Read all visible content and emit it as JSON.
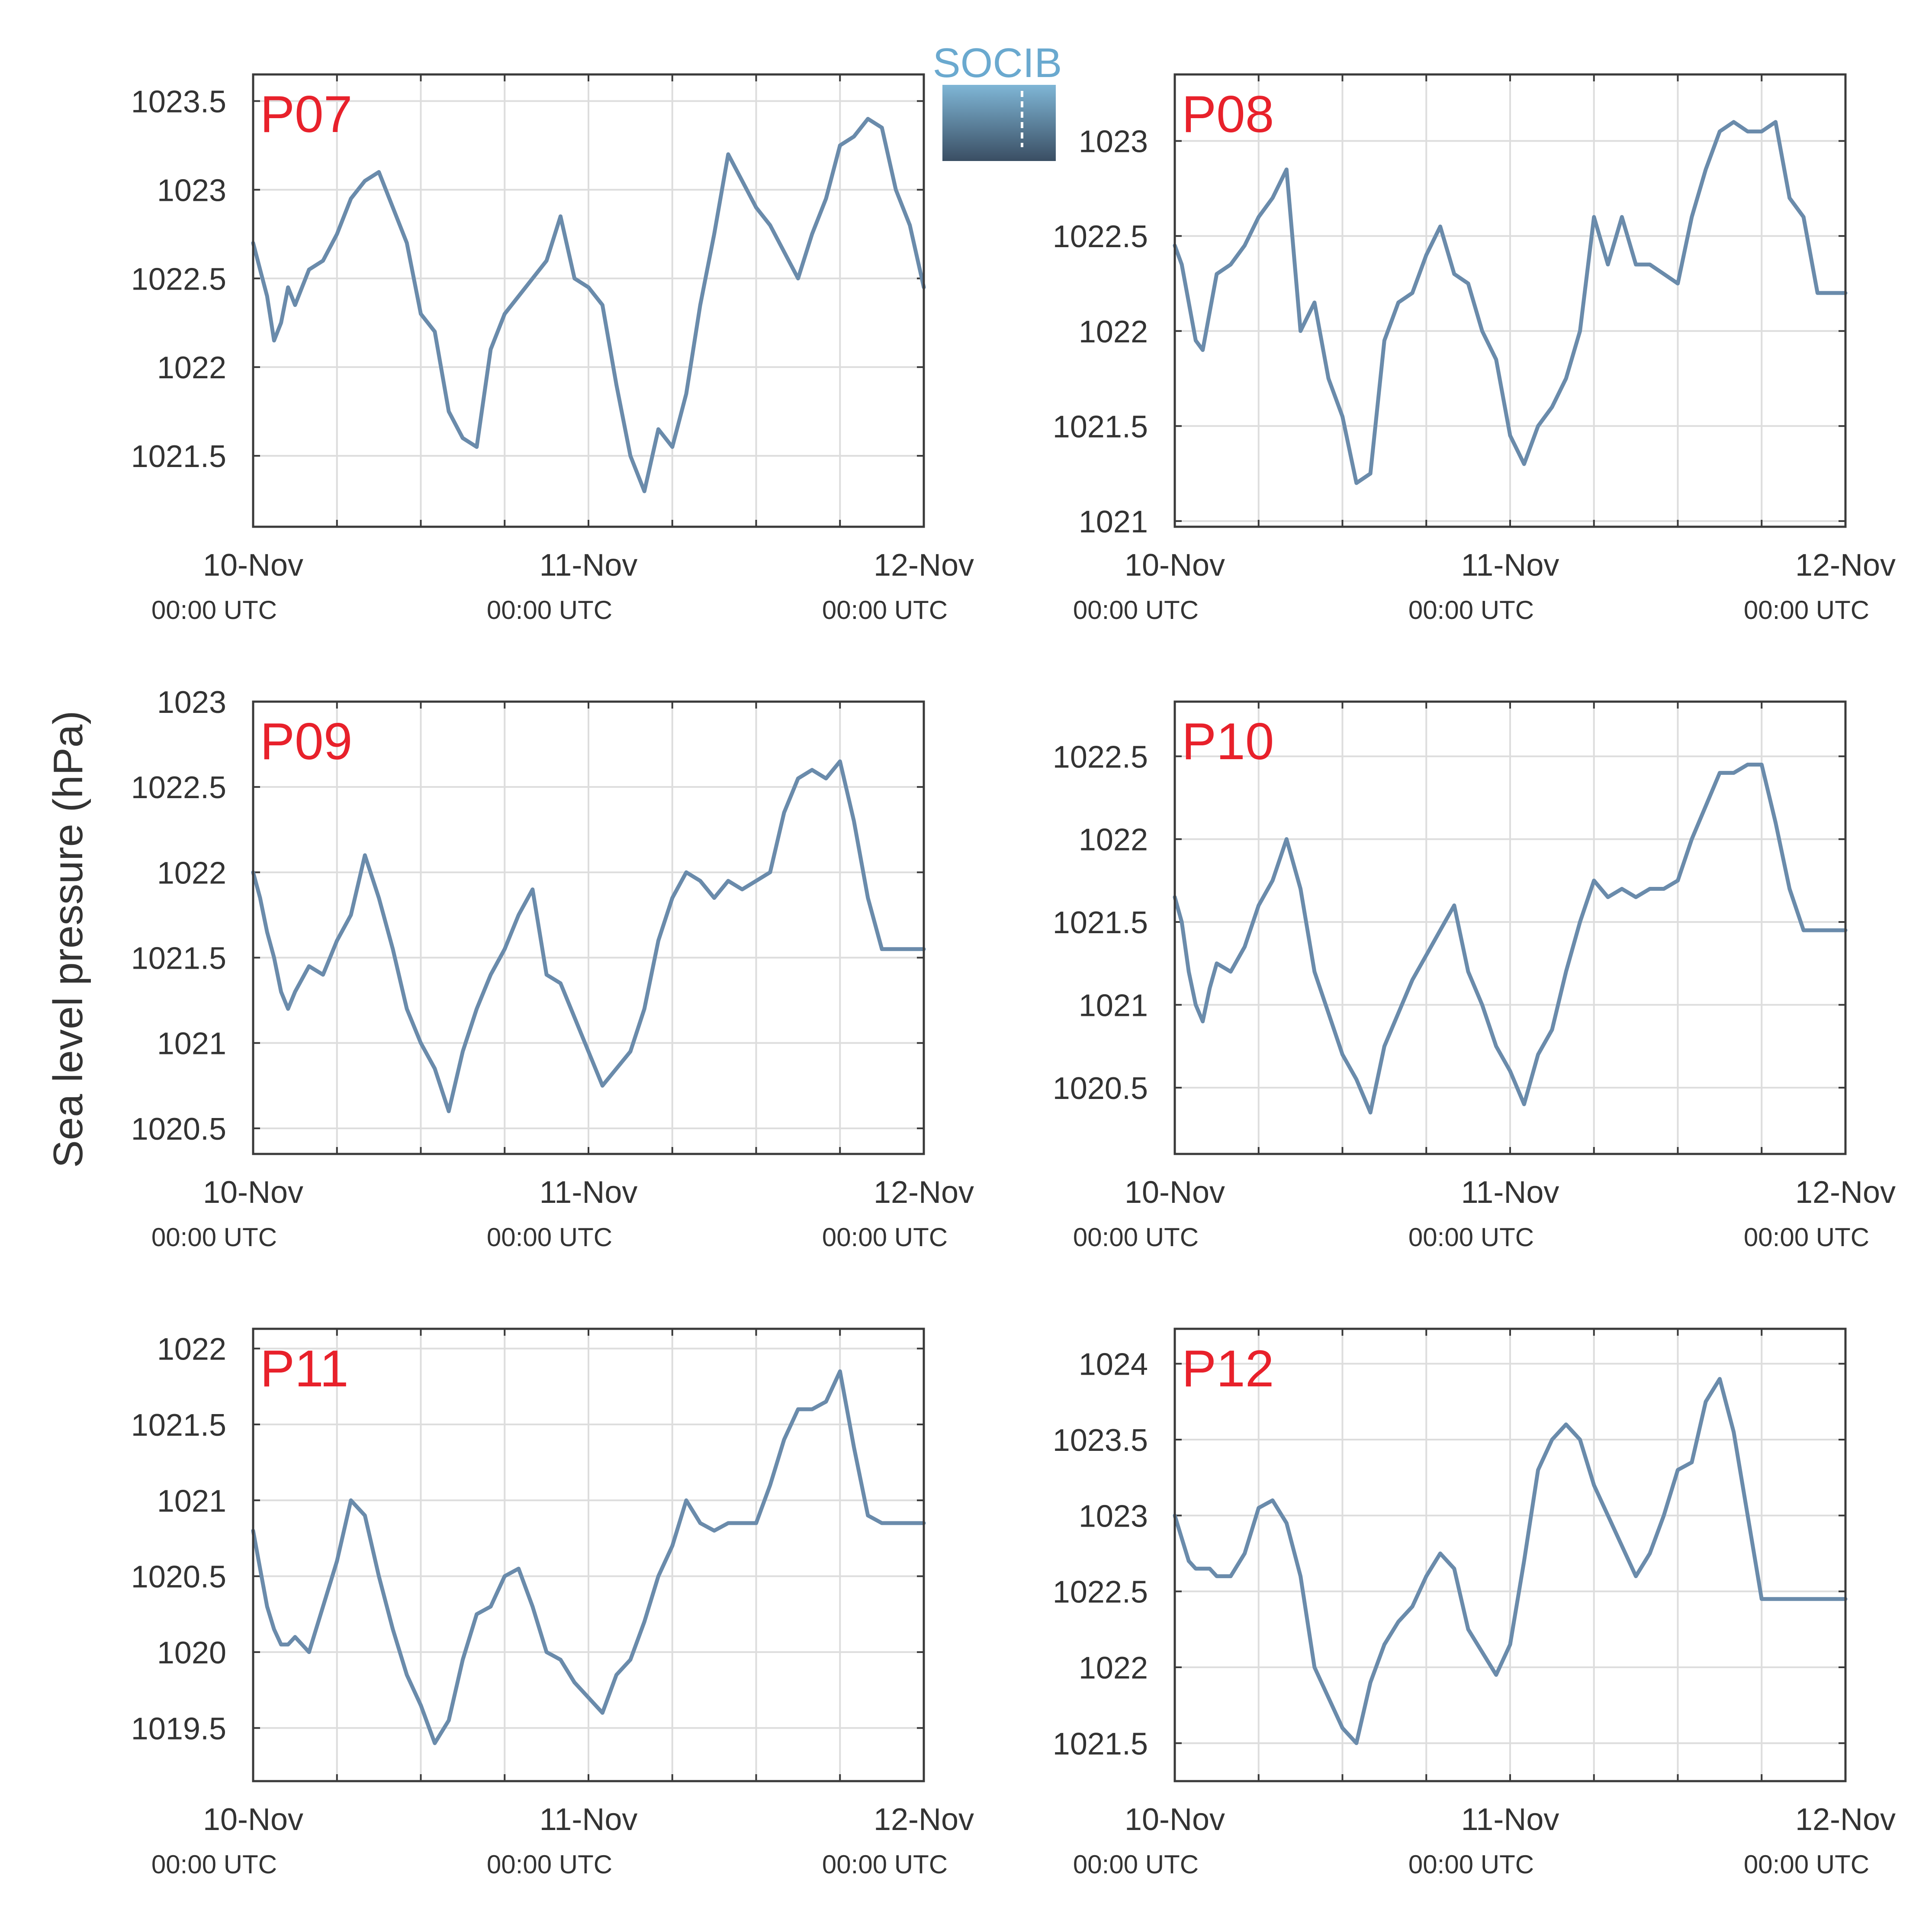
{
  "figure": {
    "ylabel": "Sea level pressure (hPa)",
    "logo_text": "SOCIB",
    "colors": {
      "line": "#6a8bab",
      "panel_label": "#e8212b",
      "grid": "#dddddd",
      "frame": "#3a3a3a",
      "logo_top": "#7fb6d6",
      "logo_bottom": "#3a4e63"
    }
  },
  "chart_data": [
    {
      "type": "line",
      "name": "P07",
      "ylim": [
        1021.1,
        1023.65
      ],
      "yticks": [
        1021.5,
        1022,
        1022.5,
        1023,
        1023.5
      ],
      "yticklabels": [
        "1021.5",
        "1022",
        "1022.5",
        "1023",
        "1023.5"
      ],
      "xlim": [
        0,
        48
      ],
      "xticks": [
        0,
        24,
        48
      ],
      "xticklabels": [
        "10-Nov",
        "11-Nov",
        "12-Nov"
      ],
      "xsublabels": [
        "00:00 UTC",
        "00:00 UTC",
        "00:00 UTC"
      ],
      "x": [
        0,
        0.5,
        1,
        1.5,
        2,
        2.5,
        3,
        4,
        5,
        6,
        7,
        8,
        9,
        10,
        11,
        12,
        13,
        14,
        15,
        16,
        17,
        18,
        19,
        20,
        21,
        22,
        23,
        24,
        25,
        26,
        27,
        28,
        29,
        30,
        31,
        32,
        33,
        34,
        35,
        36,
        37,
        38,
        39,
        40,
        41,
        42,
        43,
        44,
        45,
        46,
        47,
        48
      ],
      "y": [
        1022.7,
        1022.55,
        1022.4,
        1022.15,
        1022.25,
        1022.45,
        1022.35,
        1022.55,
        1022.6,
        1022.75,
        1022.95,
        1023.05,
        1023.1,
        1022.9,
        1022.7,
        1022.3,
        1022.2,
        1021.75,
        1021.6,
        1021.55,
        1022.1,
        1022.3,
        1022.4,
        1022.5,
        1022.6,
        1022.85,
        1022.5,
        1022.45,
        1022.35,
        1021.9,
        1021.5,
        1021.3,
        1021.65,
        1021.55,
        1021.85,
        1022.35,
        1022.75,
        1023.2,
        1023.05,
        1022.9,
        1022.8,
        1022.65,
        1022.5,
        1022.75,
        1022.95,
        1023.25,
        1023.3,
        1023.4,
        1023.35,
        1023.0,
        1022.8,
        1022.45
      ]
    },
    {
      "type": "line",
      "name": "P08",
      "ylim": [
        1020.97,
        1023.35
      ],
      "yticks": [
        1021,
        1021.5,
        1022,
        1022.5,
        1023
      ],
      "yticklabels": [
        "1021",
        "1021.5",
        "1022",
        "1022.5",
        "1023"
      ],
      "xlim": [
        0,
        48
      ],
      "xticks": [
        0,
        24,
        48
      ],
      "xticklabels": [
        "10-Nov",
        "11-Nov",
        "12-Nov"
      ],
      "xsublabels": [
        "00:00 UTC",
        "00:00 UTC",
        "00:00 UTC"
      ],
      "x": [
        0,
        0.5,
        1,
        1.5,
        2,
        2.5,
        3,
        4,
        5,
        6,
        7,
        8,
        9,
        10,
        11,
        12,
        13,
        14,
        15,
        16,
        17,
        18,
        19,
        20,
        21,
        22,
        23,
        24,
        25,
        26,
        27,
        28,
        29,
        30,
        31,
        32,
        33,
        34,
        35,
        36,
        37,
        38,
        39,
        40,
        41,
        42,
        43,
        44,
        45,
        46,
        47,
        48
      ],
      "y": [
        1022.45,
        1022.35,
        1022.15,
        1021.95,
        1021.9,
        1022.1,
        1022.3,
        1022.35,
        1022.45,
        1022.6,
        1022.7,
        1022.85,
        1022.0,
        1022.15,
        1021.75,
        1021.55,
        1021.2,
        1021.25,
        1021.95,
        1022.15,
        1022.2,
        1022.4,
        1022.55,
        1022.3,
        1022.25,
        1022.0,
        1021.85,
        1021.45,
        1021.3,
        1021.5,
        1021.6,
        1021.75,
        1022.0,
        1022.6,
        1022.35,
        1022.6,
        1022.35,
        1022.35,
        1022.3,
        1022.25,
        1022.6,
        1022.85,
        1023.05,
        1023.1,
        1023.05,
        1023.05,
        1023.1,
        1022.7,
        1022.6,
        1022.2,
        1022.2,
        1022.2
      ]
    },
    {
      "type": "line",
      "name": "P09",
      "ylim": [
        1020.35,
        1023.0
      ],
      "yticks": [
        1020.5,
        1021,
        1021.5,
        1022,
        1022.5,
        1023
      ],
      "yticklabels": [
        "1020.5",
        "1021",
        "1021.5",
        "1022",
        "1022.5",
        "1023"
      ],
      "xlim": [
        0,
        48
      ],
      "xticks": [
        0,
        24,
        48
      ],
      "xticklabels": [
        "10-Nov",
        "11-Nov",
        "12-Nov"
      ],
      "xsublabels": [
        "00:00 UTC",
        "00:00 UTC",
        "00:00 UTC"
      ],
      "x": [
        0,
        0.5,
        1,
        1.5,
        2,
        2.5,
        3,
        4,
        5,
        6,
        7,
        8,
        9,
        10,
        11,
        12,
        13,
        14,
        15,
        16,
        17,
        18,
        19,
        20,
        21,
        22,
        23,
        24,
        25,
        26,
        27,
        28,
        29,
        30,
        31,
        32,
        33,
        34,
        35,
        36,
        37,
        38,
        39,
        40,
        41,
        42,
        43,
        44,
        45,
        46,
        47,
        48
      ],
      "y": [
        1022.0,
        1021.85,
        1021.65,
        1021.5,
        1021.3,
        1021.2,
        1021.3,
        1021.45,
        1021.4,
        1021.6,
        1021.75,
        1022.1,
        1021.85,
        1021.55,
        1021.2,
        1021.0,
        1020.85,
        1020.6,
        1020.95,
        1021.2,
        1021.4,
        1021.55,
        1021.75,
        1021.9,
        1021.4,
        1021.35,
        1021.15,
        1020.95,
        1020.75,
        1020.85,
        1020.95,
        1021.2,
        1021.6,
        1021.85,
        1022.0,
        1021.95,
        1021.85,
        1021.95,
        1021.9,
        1021.95,
        1022.0,
        1022.35,
        1022.55,
        1022.6,
        1022.55,
        1022.65,
        1022.3,
        1021.85,
        1021.55,
        1021.55,
        1021.55,
        1021.55
      ]
    },
    {
      "type": "line",
      "name": "P10",
      "ylim": [
        1020.1,
        1022.83
      ],
      "yticks": [
        1020.5,
        1021,
        1021.5,
        1022,
        1022.5
      ],
      "yticklabels": [
        "1020.5",
        "1021",
        "1021.5",
        "1022",
        "1022.5"
      ],
      "xlim": [
        0,
        48
      ],
      "xticks": [
        0,
        24,
        48
      ],
      "xticklabels": [
        "10-Nov",
        "11-Nov",
        "12-Nov"
      ],
      "xsublabels": [
        "00:00 UTC",
        "00:00 UTC",
        "00:00 UTC"
      ],
      "x": [
        0,
        0.5,
        1,
        1.5,
        2,
        2.5,
        3,
        4,
        5,
        6,
        7,
        8,
        9,
        10,
        11,
        12,
        13,
        14,
        15,
        16,
        17,
        18,
        19,
        20,
        21,
        22,
        23,
        24,
        25,
        26,
        27,
        28,
        29,
        30,
        31,
        32,
        33,
        34,
        35,
        36,
        37,
        38,
        39,
        40,
        41,
        42,
        43,
        44,
        45,
        46,
        47,
        48
      ],
      "y": [
        1021.65,
        1021.5,
        1021.2,
        1021.0,
        1020.9,
        1021.1,
        1021.25,
        1021.2,
        1021.35,
        1021.6,
        1021.75,
        1022.0,
        1021.7,
        1021.2,
        1020.95,
        1020.7,
        1020.55,
        1020.35,
        1020.75,
        1020.95,
        1021.15,
        1021.3,
        1021.45,
        1021.6,
        1021.2,
        1021.0,
        1020.75,
        1020.6,
        1020.4,
        1020.7,
        1020.85,
        1021.2,
        1021.5,
        1021.75,
        1021.65,
        1021.7,
        1021.65,
        1021.7,
        1021.7,
        1021.75,
        1022.0,
        1022.2,
        1022.4,
        1022.4,
        1022.45,
        1022.45,
        1022.1,
        1021.7,
        1021.45,
        1021.45,
        1021.45,
        1021.45
      ]
    },
    {
      "type": "line",
      "name": "P11",
      "ylim": [
        1019.15,
        1022.13
      ],
      "yticks": [
        1019.5,
        1020,
        1020.5,
        1021,
        1021.5,
        1022
      ],
      "yticklabels": [
        "1019.5",
        "1020",
        "1020.5",
        "1021",
        "1021.5",
        "1022"
      ],
      "xlim": [
        0,
        48
      ],
      "xticks": [
        0,
        24,
        48
      ],
      "xticklabels": [
        "10-Nov",
        "11-Nov",
        "12-Nov"
      ],
      "xsublabels": [
        "00:00 UTC",
        "00:00 UTC",
        "00:00 UTC"
      ],
      "x": [
        0,
        0.5,
        1,
        1.5,
        2,
        2.5,
        3,
        4,
        5,
        6,
        7,
        8,
        9,
        10,
        11,
        12,
        13,
        14,
        15,
        16,
        17,
        18,
        19,
        20,
        21,
        22,
        23,
        24,
        25,
        26,
        27,
        28,
        29,
        30,
        31,
        32,
        33,
        34,
        35,
        36,
        37,
        38,
        39,
        40,
        41,
        42,
        43,
        44,
        45,
        46,
        47,
        48
      ],
      "y": [
        1020.8,
        1020.55,
        1020.3,
        1020.15,
        1020.05,
        1020.05,
        1020.1,
        1020.0,
        1020.3,
        1020.6,
        1021.0,
        1020.9,
        1020.5,
        1020.15,
        1019.85,
        1019.65,
        1019.4,
        1019.55,
        1019.95,
        1020.25,
        1020.3,
        1020.5,
        1020.55,
        1020.3,
        1020.0,
        1019.95,
        1019.8,
        1019.7,
        1019.6,
        1019.85,
        1019.95,
        1020.2,
        1020.5,
        1020.7,
        1021.0,
        1020.85,
        1020.8,
        1020.85,
        1020.85,
        1020.85,
        1021.1,
        1021.4,
        1021.6,
        1021.6,
        1021.65,
        1021.85,
        1021.35,
        1020.9,
        1020.85,
        1020.85,
        1020.85,
        1020.85
      ]
    },
    {
      "type": "line",
      "name": "P12",
      "ylim": [
        1021.25,
        1024.23
      ],
      "yticks": [
        1021.5,
        1022,
        1022.5,
        1023,
        1023.5,
        1024
      ],
      "yticklabels": [
        "1021.5",
        "1022",
        "1022.5",
        "1023",
        "1023.5",
        "1024"
      ],
      "xlim": [
        0,
        48
      ],
      "xticks": [
        0,
        24,
        48
      ],
      "xticklabels": [
        "10-Nov",
        "11-Nov",
        "12-Nov"
      ],
      "xsublabels": [
        "00:00 UTC",
        "00:00 UTC",
        "00:00 UTC"
      ],
      "x": [
        0,
        0.5,
        1,
        1.5,
        2,
        2.5,
        3,
        4,
        5,
        6,
        7,
        8,
        9,
        10,
        11,
        12,
        13,
        14,
        15,
        16,
        17,
        18,
        19,
        20,
        21,
        22,
        23,
        24,
        25,
        26,
        27,
        28,
        29,
        30,
        31,
        32,
        33,
        34,
        35,
        36,
        37,
        38,
        39,
        40,
        41,
        42,
        43,
        44,
        45,
        46,
        47,
        48
      ],
      "y": [
        1023.0,
        1022.85,
        1022.7,
        1022.65,
        1022.65,
        1022.65,
        1022.6,
        1022.6,
        1022.75,
        1023.05,
        1023.1,
        1022.95,
        1022.6,
        1022.0,
        1021.8,
        1021.6,
        1021.5,
        1021.9,
        1022.15,
        1022.3,
        1022.4,
        1022.6,
        1022.75,
        1022.65,
        1022.25,
        1022.1,
        1021.95,
        1022.15,
        1022.7,
        1023.3,
        1023.5,
        1023.6,
        1023.5,
        1023.2,
        1023.0,
        1022.8,
        1022.6,
        1022.75,
        1023.0,
        1023.3,
        1023.35,
        1023.75,
        1023.9,
        1023.55,
        1023.0,
        1022.45,
        1022.45,
        1022.45,
        1022.45,
        1022.45,
        1022.45,
        1022.45
      ]
    }
  ]
}
